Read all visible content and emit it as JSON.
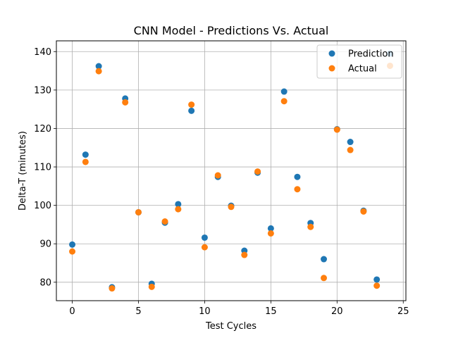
{
  "chart_data": {
    "type": "scatter",
    "title": "CNN Model - Predictions Vs. Actual",
    "xlabel": "Test Cycles",
    "ylabel": "Delta-T (minutes)",
    "xlim": [
      -1.2,
      25.2
    ],
    "ylim": [
      75.2,
      142.8
    ],
    "xticks": [
      0,
      5,
      10,
      15,
      20,
      25
    ],
    "yticks": [
      80,
      90,
      100,
      110,
      120,
      130,
      140
    ],
    "grid": true,
    "legend_position": "top-right",
    "series": [
      {
        "name": "Prediction",
        "color": "#1f77b4",
        "x": [
          0,
          1,
          2,
          3,
          4,
          5,
          6,
          7,
          8,
          9,
          10,
          11,
          12,
          13,
          14,
          15,
          16,
          17,
          18,
          19,
          20,
          21,
          22,
          23,
          24
        ],
        "y": [
          89.8,
          113.2,
          136.2,
          78.7,
          127.8,
          98.2,
          79.6,
          95.5,
          100.3,
          124.6,
          91.6,
          107.4,
          99.9,
          88.2,
          108.5,
          94.0,
          129.6,
          107.4,
          95.4,
          86.0,
          119.8,
          116.5,
          98.6,
          80.7,
          139.5
        ]
      },
      {
        "name": "Actual",
        "color": "#ff7f0e",
        "x": [
          0,
          1,
          2,
          3,
          4,
          5,
          6,
          7,
          8,
          9,
          10,
          11,
          12,
          13,
          14,
          15,
          16,
          17,
          18,
          19,
          20,
          21,
          22,
          23,
          24
        ],
        "y": [
          88.0,
          111.3,
          134.9,
          78.4,
          126.8,
          98.2,
          78.8,
          95.8,
          99.0,
          126.2,
          89.1,
          107.8,
          99.6,
          87.1,
          108.8,
          92.7,
          127.1,
          104.2,
          94.4,
          81.1,
          119.7,
          114.4,
          98.4,
          79.1,
          136.3
        ]
      }
    ]
  }
}
